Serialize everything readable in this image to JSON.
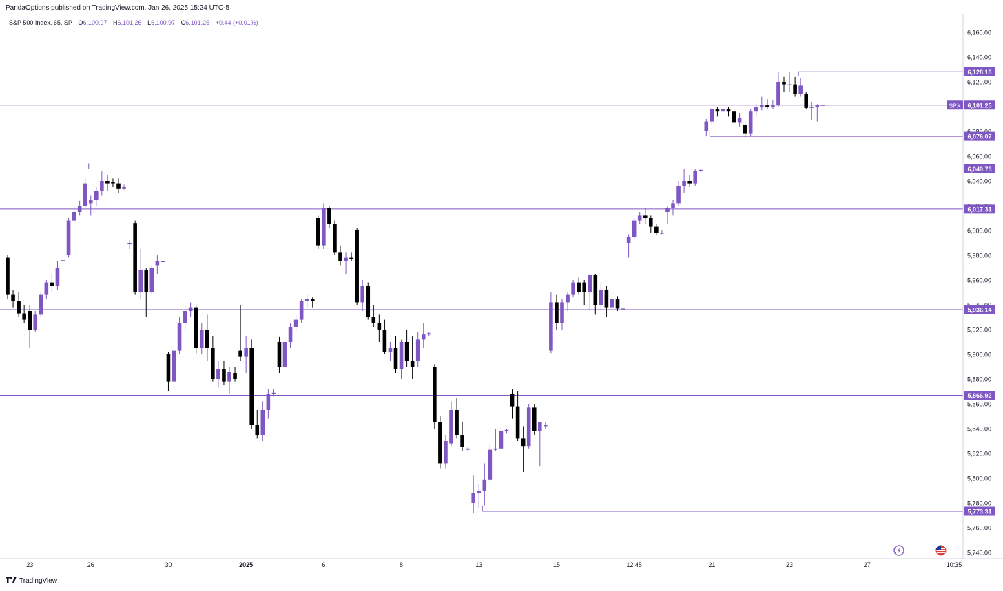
{
  "publisher_line": "PandaOptions published on TradingView.com, Jan 26, 2025 15:24 UTC-5",
  "footer": {
    "brand": "TradingView",
    "logo": "tradingview-logo"
  },
  "legend": {
    "symbol": "S&P 500 Index, 65, SP",
    "open_label": "O",
    "open": "6,100.97",
    "high_label": "H",
    "high": "6,101.26",
    "low_label": "L",
    "low": "6,100.97",
    "close_label": "C",
    "close": "6,101.25",
    "change": "+0.44 (+0.01%)"
  },
  "icons": {
    "lightning": "lightning-icon",
    "flag": "us-flag-icon"
  },
  "colors": {
    "bull": "#7e57c2",
    "bear": "#000000",
    "level": "#7e57c2",
    "accent": "#7e57c2"
  },
  "chart_data": {
    "type": "candlestick",
    "title": "S&P 500 Index, 65, SP",
    "ylim": [
      5735,
      6175
    ],
    "y_ticks": [
      5740,
      5760,
      5780,
      5800,
      5820,
      5840,
      5860,
      5880,
      5900,
      5920,
      5940,
      5960,
      5980,
      6000,
      6020,
      6040,
      6060,
      6080,
      6100,
      6120,
      6140,
      6160
    ],
    "y_tick_labels": [
      "5,740.00",
      "5,760.00",
      "5,780.00",
      "5,800.00",
      "5,820.00",
      "5,840.00",
      "5,860.00",
      "5,880.00",
      "5,900.00",
      "5,920.00",
      "5,940.00",
      "5,960.00",
      "5,980.00",
      "6,000.00",
      "6,020.00",
      "6,040.00",
      "6,060.00",
      "6,080.00",
      "6,100.00",
      "6,120.00",
      "6,140.00",
      "6,160.00"
    ],
    "x_count": 152,
    "x_ticks": [
      {
        "label": "23",
        "bar": 4
      },
      {
        "label": "26",
        "bar": 15
      },
      {
        "label": "30",
        "bar": 29
      },
      {
        "label": "2025",
        "bar": 43,
        "bold": true
      },
      {
        "label": "6",
        "bar": 57
      },
      {
        "label": "8",
        "bar": 71
      },
      {
        "label": "13",
        "bar": 85
      },
      {
        "label": "15",
        "bar": 99
      },
      {
        "label": "12:45",
        "bar": 113
      },
      {
        "label": "21",
        "bar": 127
      },
      {
        "label": "23",
        "bar": 141
      },
      {
        "label": "27",
        "bar": 155
      },
      {
        "label": "10:35",
        "bar": 164
      }
    ],
    "levels": [
      {
        "value": 6128.18,
        "label": "6,128.18",
        "from_bar": 143
      },
      {
        "value": 6101.25,
        "label": "6,101.25",
        "from_bar": 0,
        "tag": "SPX",
        "current": true
      },
      {
        "value": 6076.07,
        "label": "6,076.07",
        "from_bar": 127
      },
      {
        "value": 6049.75,
        "label": "6,049.75",
        "from_bar": 15
      },
      {
        "value": 6017.31,
        "label": "6,017.31",
        "from_bar": 0
      },
      {
        "value": 5936.14,
        "label": "5,936.14",
        "from_bar": 0
      },
      {
        "value": 5866.92,
        "label": "5,866.92",
        "from_bar": 0
      },
      {
        "value": 5773.31,
        "label": "5,773.31",
        "from_bar": 86
      }
    ],
    "candles": [
      [
        5978,
        5980,
        5945,
        5948
      ],
      [
        5948,
        5952,
        5938,
        5943
      ],
      [
        5943,
        5950,
        5930,
        5933
      ],
      [
        5933,
        5940,
        5925,
        5928
      ],
      [
        5935,
        5940,
        5905,
        5920
      ],
      [
        5920,
        5935,
        5918,
        5932
      ],
      [
        5932,
        5950,
        5930,
        5948
      ],
      [
        5948,
        5960,
        5945,
        5958
      ],
      [
        5958,
        5965,
        5950,
        5955
      ],
      [
        5955,
        5975,
        5952,
        5970
      ],
      [
        5975,
        5978,
        5975,
        5976
      ],
      [
        5980,
        6010,
        5978,
        6008
      ],
      [
        6008,
        6020,
        6005,
        6015
      ],
      [
        6015,
        6024,
        6012,
        6020
      ],
      [
        6020,
        6042,
        6018,
        6038
      ],
      [
        6022,
        6028,
        6012,
        6025
      ],
      [
        6025,
        6035,
        6020,
        6032
      ],
      [
        6032,
        6048,
        6028,
        6040
      ],
      [
        6040,
        6045,
        6032,
        6038
      ],
      [
        6039,
        6042,
        6035,
        6038
      ],
      [
        6038,
        6042,
        6030,
        6034
      ],
      [
        6034,
        6037,
        6033,
        6035
      ],
      [
        5990,
        5992,
        5985,
        5990
      ],
      [
        6006,
        6008,
        5948,
        5950
      ],
      [
        5950,
        5985,
        5945,
        5968
      ],
      [
        5968,
        5970,
        5930,
        5950
      ],
      [
        5950,
        5972,
        5948,
        5970
      ],
      [
        5972,
        5980,
        5965,
        5975
      ],
      [
        5975,
        5976,
        5974,
        5975
      ],
      [
        5900,
        5902,
        5870,
        5878
      ],
      [
        5878,
        5905,
        5875,
        5903
      ],
      [
        5903,
        5930,
        5900,
        5925
      ],
      [
        5925,
        5940,
        5918,
        5935
      ],
      [
        5935,
        5942,
        5930,
        5938
      ],
      [
        5938,
        5940,
        5900,
        5905
      ],
      [
        5905,
        5925,
        5900,
        5920
      ],
      [
        5920,
        5932,
        5895,
        5905
      ],
      [
        5905,
        5915,
        5878,
        5880
      ],
      [
        5880,
        5895,
        5873,
        5888
      ],
      [
        5888,
        5895,
        5875,
        5878
      ],
      [
        5878,
        5890,
        5868,
        5886
      ],
      [
        5885,
        5890,
        5878,
        5880
      ],
      [
        5903,
        5940,
        5895,
        5898
      ],
      [
        5898,
        5915,
        5885,
        5905
      ],
      [
        5905,
        5912,
        5840,
        5843
      ],
      [
        5843,
        5855,
        5832,
        5835
      ],
      [
        5835,
        5862,
        5830,
        5855
      ],
      [
        5855,
        5872,
        5848,
        5868
      ],
      [
        5868,
        5872,
        5866,
        5869
      ],
      [
        5910,
        5914,
        5885,
        5890
      ],
      [
        5890,
        5912,
        5888,
        5910
      ],
      [
        5910,
        5925,
        5905,
        5922
      ],
      [
        5922,
        5932,
        5918,
        5928
      ],
      [
        5928,
        5945,
        5925,
        5943
      ],
      [
        5943,
        5948,
        5938,
        5945
      ],
      [
        5945,
        5946,
        5938,
        5943
      ],
      [
        6010,
        6012,
        5985,
        5988
      ],
      [
        5988,
        6022,
        5985,
        6018
      ],
      [
        6018,
        6020,
        6002,
        6005
      ],
      [
        6005,
        6008,
        5980,
        5982
      ],
      [
        5982,
        5988,
        5972,
        5975
      ],
      [
        5975,
        5982,
        5965,
        5978
      ],
      [
        5978,
        5982,
        5975,
        5977
      ],
      [
        6000,
        6002,
        5940,
        5942
      ],
      [
        5942,
        5960,
        5935,
        5955
      ],
      [
        5955,
        5958,
        5928,
        5930
      ],
      [
        5930,
        5940,
        5922,
        5925
      ],
      [
        5925,
        5932,
        5910,
        5920
      ],
      [
        5920,
        5928,
        5900,
        5902
      ],
      [
        5902,
        5910,
        5895,
        5905
      ],
      [
        5905,
        5915,
        5885,
        5888
      ],
      [
        5888,
        5912,
        5880,
        5910
      ],
      [
        5910,
        5920,
        5890,
        5895
      ],
      [
        5895,
        5915,
        5880,
        5890
      ],
      [
        5895,
        5918,
        5890,
        5912
      ],
      [
        5912,
        5925,
        5905,
        5916
      ],
      [
        5916,
        5918,
        5915,
        5917
      ],
      [
        5890,
        5892,
        5840,
        5845
      ],
      [
        5845,
        5850,
        5808,
        5812
      ],
      [
        5812,
        5835,
        5808,
        5830
      ],
      [
        5828,
        5862,
        5826,
        5855
      ],
      [
        5855,
        5865,
        5832,
        5835
      ],
      [
        5835,
        5845,
        5822,
        5825
      ],
      [
        5823,
        5825,
        5822,
        5824
      ],
      [
        5780,
        5802,
        5772,
        5788
      ],
      [
        5788,
        5795,
        5776,
        5790
      ],
      [
        5790,
        5812,
        5778,
        5799
      ],
      [
        5799,
        5828,
        5797,
        5823
      ],
      [
        5823,
        5840,
        5822,
        5824
      ],
      [
        5824,
        5842,
        5822,
        5838
      ],
      [
        5838,
        5840,
        5836,
        5839
      ],
      [
        5868,
        5872,
        5848,
        5858
      ],
      [
        5858,
        5870,
        5830,
        5832
      ],
      [
        5832,
        5842,
        5805,
        5826
      ],
      [
        5826,
        5860,
        5824,
        5857
      ],
      [
        5857,
        5860,
        5835,
        5838
      ],
      [
        5838,
        5845,
        5810,
        5845
      ],
      [
        5842,
        5845,
        5840,
        5843
      ],
      [
        5903,
        5950,
        5901,
        5942
      ],
      [
        5942,
        5948,
        5920,
        5925
      ],
      [
        5925,
        5945,
        5920,
        5942
      ],
      [
        5942,
        5950,
        5935,
        5948
      ],
      [
        5948,
        5960,
        5946,
        5958
      ],
      [
        5958,
        5962,
        5948,
        5950
      ],
      [
        5958,
        5960,
        5940,
        5950
      ],
      [
        5950,
        5965,
        5935,
        5964
      ],
      [
        5964,
        5965,
        5932,
        5940
      ],
      [
        5940,
        5958,
        5936,
        5952
      ],
      [
        5952,
        5955,
        5930,
        5938
      ],
      [
        5938,
        5950,
        5932,
        5945
      ],
      [
        5945,
        5947,
        5935,
        5937
      ],
      [
        5937,
        5938,
        5936,
        5937
      ],
      [
        5990,
        5997,
        5978,
        5995
      ],
      [
        5995,
        6010,
        5993,
        6008
      ],
      [
        6008,
        6015,
        6005,
        6012
      ],
      [
        6012,
        6018,
        6005,
        6010
      ],
      [
        6010,
        6012,
        5998,
        6003
      ],
      [
        6003,
        6005,
        5996,
        5998
      ],
      [
        5998,
        6000,
        5997,
        5998
      ],
      [
        6015,
        6020,
        6005,
        6018
      ],
      [
        6018,
        6025,
        6012,
        6022
      ],
      [
        6022,
        6040,
        6020,
        6036
      ],
      [
        6036,
        6050,
        6030,
        6040
      ],
      [
        6040,
        6045,
        6035,
        6038
      ],
      [
        6038,
        6050,
        6036,
        6048
      ],
      [
        6048,
        6050,
        6047,
        6049
      ],
      [
        6080,
        6090,
        6076,
        6088
      ],
      [
        6088,
        6100,
        6085,
        6098
      ],
      [
        6098,
        6100,
        6092,
        6096
      ],
      [
        6096,
        6100,
        6094,
        6098
      ],
      [
        6098,
        6100,
        6092,
        6096
      ],
      [
        6096,
        6098,
        6085,
        6087
      ],
      [
        6087,
        6095,
        6084,
        6091
      ],
      [
        6085,
        6087,
        6075,
        6078
      ],
      [
        6078,
        6098,
        6076,
        6096
      ],
      [
        6096,
        6102,
        6092,
        6100
      ],
      [
        6100,
        6108,
        6097,
        6101
      ],
      [
        6101,
        6106,
        6098,
        6100
      ],
      [
        6100,
        6105,
        6098,
        6101
      ],
      [
        6101,
        6128,
        6100,
        6120
      ],
      [
        6120,
        6124,
        6112,
        6118
      ],
      [
        6118,
        6128,
        6112,
        6118
      ],
      [
        6118,
        6124,
        6108,
        6110
      ],
      [
        6110,
        6123,
        6108,
        6117
      ],
      [
        6110,
        6112,
        6098,
        6099
      ],
      [
        6099,
        6104,
        6089,
        6100
      ],
      [
        6100,
        6102,
        6088,
        6101
      ],
      [
        6100.97,
        6101.26,
        6100.97,
        6101.25
      ]
    ]
  }
}
